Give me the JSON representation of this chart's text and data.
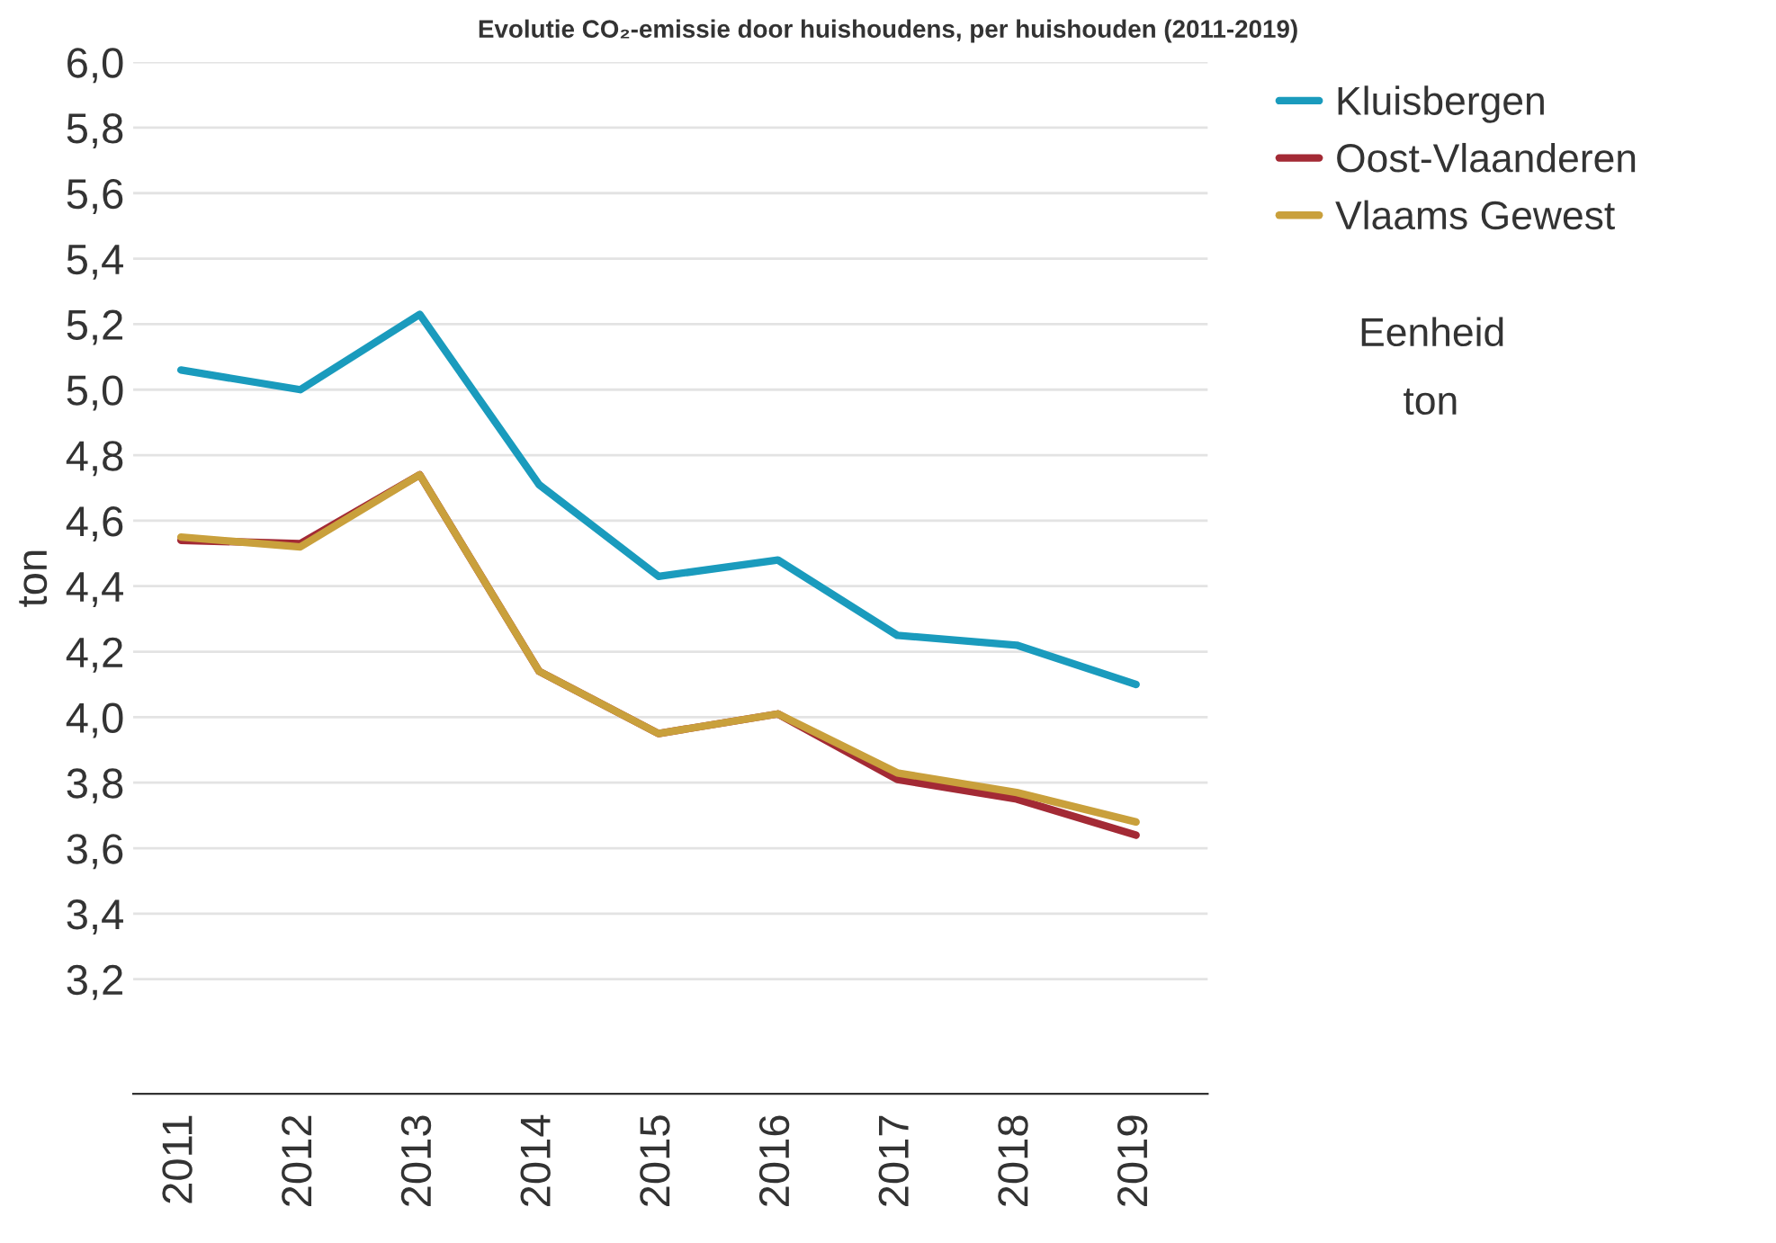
{
  "chart_data": {
    "type": "line",
    "title": "Evolutie CO₂-emissie door huishoudens, per huishouden (2011-2019)",
    "ylabel": "ton",
    "categories": [
      "2011",
      "2012",
      "2013",
      "2014",
      "2015",
      "2016",
      "2017",
      "2018",
      "2019"
    ],
    "series": [
      {
        "name": "Kluisbergen",
        "color": "#1a9bbd",
        "values": [
          5.06,
          5.0,
          5.23,
          4.71,
          4.43,
          4.48,
          4.25,
          4.22,
          4.1
        ]
      },
      {
        "name": "Oost-Vlaanderen",
        "color": "#a32a35",
        "values": [
          4.54,
          4.53,
          4.74,
          4.14,
          3.95,
          4.01,
          3.81,
          3.75,
          3.64
        ]
      },
      {
        "name": "Vlaams Gewest",
        "color": "#c9a03c",
        "values": [
          4.55,
          4.52,
          4.74,
          4.14,
          3.95,
          4.01,
          3.83,
          3.77,
          3.68
        ]
      }
    ],
    "ylim": [
      2.85,
      6.0
    ],
    "yticks": [
      {
        "value": 3.2,
        "label": "3,2"
      },
      {
        "value": 3.4,
        "label": "3,4"
      },
      {
        "value": 3.6,
        "label": "3,6"
      },
      {
        "value": 3.8,
        "label": "3,8"
      },
      {
        "value": 4.0,
        "label": "4,0"
      },
      {
        "value": 4.2,
        "label": "4,2"
      },
      {
        "value": 4.4,
        "label": "4,4"
      },
      {
        "value": 4.6,
        "label": "4,6"
      },
      {
        "value": 4.8,
        "label": "4,8"
      },
      {
        "value": 5.0,
        "label": "5,0"
      },
      {
        "value": 5.2,
        "label": "5,2"
      },
      {
        "value": 5.4,
        "label": "5,4"
      },
      {
        "value": 5.6,
        "label": "5,6"
      },
      {
        "value": 5.8,
        "label": "5,8"
      },
      {
        "value": 6.0,
        "label": "6,0"
      }
    ],
    "grid": "y",
    "legend": "top right",
    "marker": "none",
    "line_style": "solid",
    "annotations": [
      "Eenheid",
      "ton"
    ]
  }
}
